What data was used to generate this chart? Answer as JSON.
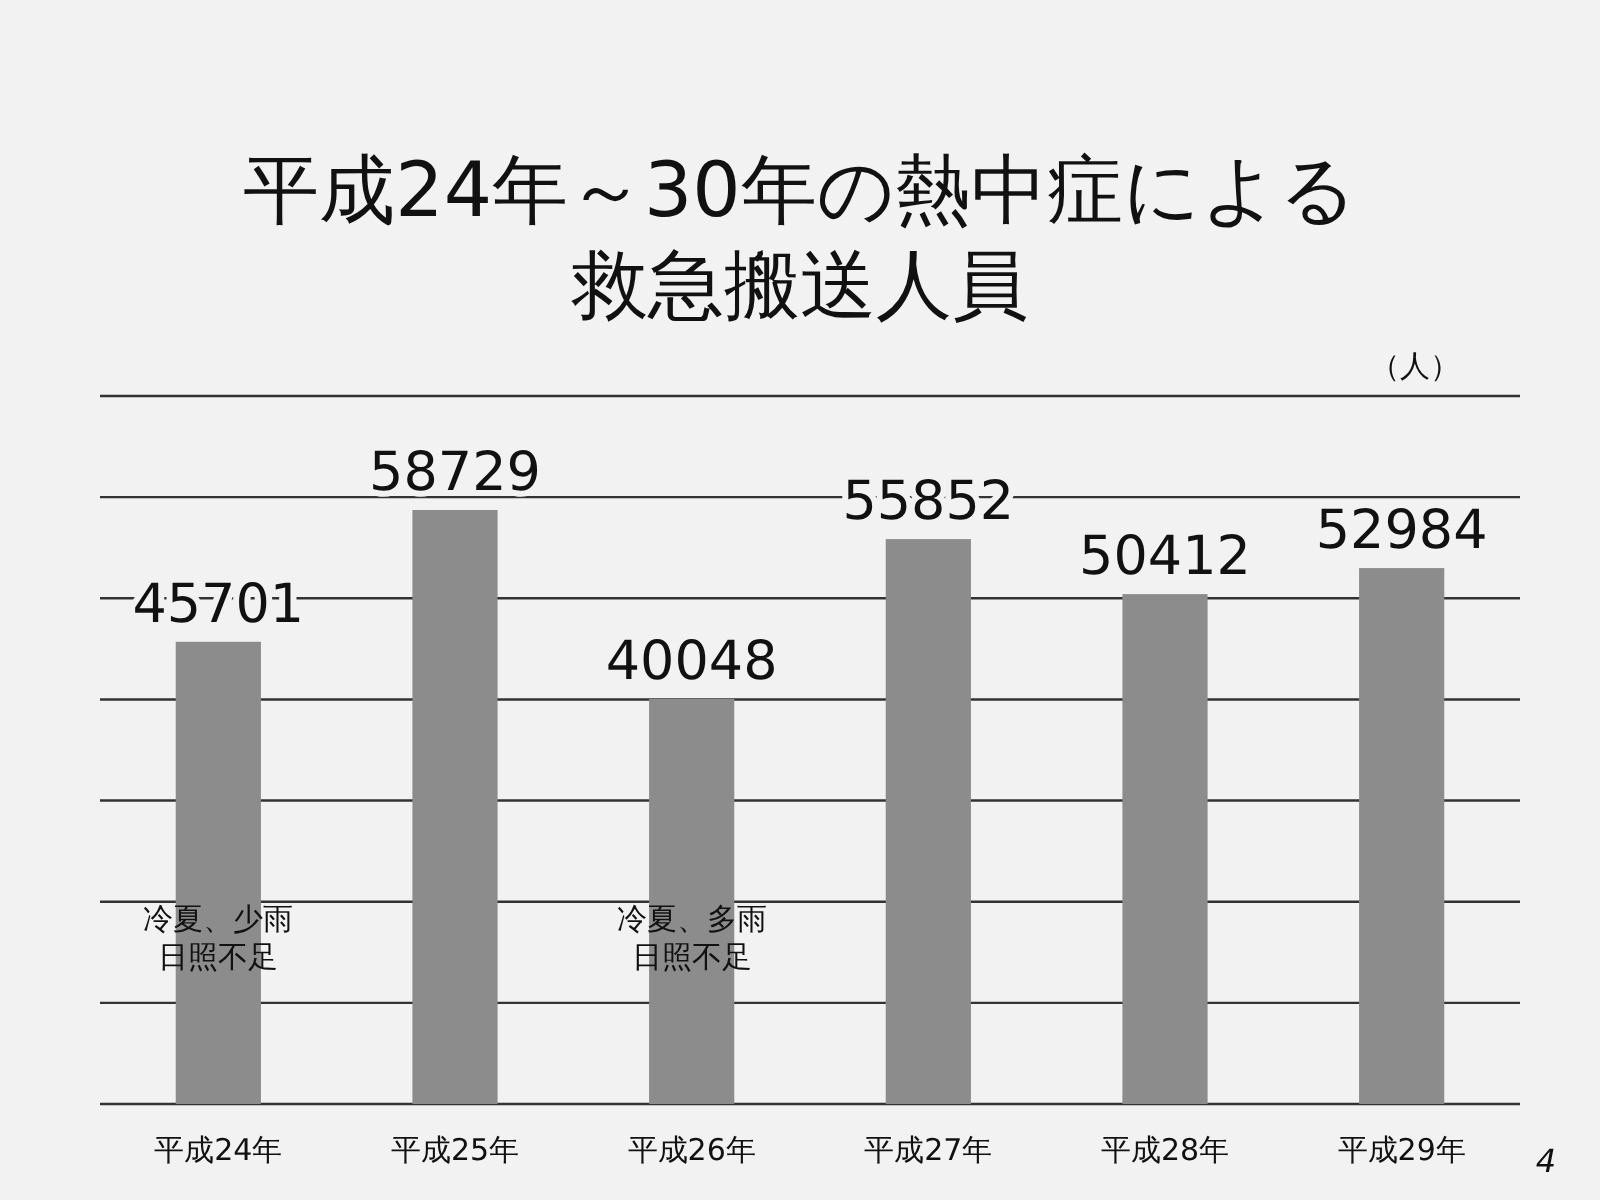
{
  "chart_data": {
    "type": "bar",
    "title": "平成24年～30年の熱中症による救急搬送人員",
    "ylabel": "（人）",
    "categories": [
      "平成24年",
      "平成25年",
      "平成26年",
      "平成27年",
      "平成28年",
      "平成29年"
    ],
    "values": [
      45701,
      58729,
      40048,
      55852,
      50412,
      52984
    ],
    "color": "#8c8c8c",
    "ylim": [
      0,
      70000
    ],
    "yticks": [
      {
        "value": 0,
        "label": null
      },
      {
        "value": 10000,
        "label": null
      },
      {
        "value": 20000,
        "label": null
      },
      {
        "value": 30000,
        "label": null
      },
      {
        "value": 40000,
        "label": null
      },
      {
        "value": 50000,
        "label": null
      },
      {
        "value": 60000,
        "label": null
      },
      {
        "value": 70000,
        "label": null
      }
    ],
    "grid": "y",
    "tick_labels": "x",
    "data_labels": true,
    "annotations": [
      "冷夏、少雨日照不足",
      "冷夏、多雨日照不足",
      "4"
    ]
  }
}
